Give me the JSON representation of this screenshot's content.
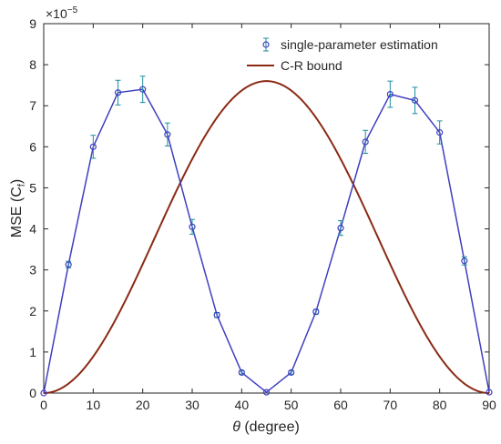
{
  "chart_data": {
    "type": "line",
    "xlabel_symbol": "θ",
    "xlabel_rest": " (degree)",
    "ylabel_main": "MSE (C",
    "ylabel_sub": "f",
    "ylabel_end": ")",
    "exponent_base": "×10",
    "exponent_power": "−5",
    "xlim": [
      0,
      90
    ],
    "ylim": [
      0,
      9
    ],
    "xticks": [
      0,
      10,
      20,
      30,
      40,
      50,
      60,
      70,
      80,
      90
    ],
    "yticks": [
      0,
      1,
      2,
      3,
      4,
      5,
      6,
      7,
      8,
      9
    ],
    "grid": false,
    "legend_position": "top-right",
    "series": [
      {
        "name": "single-parameter estimation",
        "style": "line-with-circles-and-errorbars",
        "color": "#3f3fc0",
        "error_color": "#1f8fa0",
        "x": [
          0,
          5,
          10,
          15,
          20,
          25,
          30,
          35,
          40,
          45,
          50,
          55,
          60,
          65,
          70,
          75,
          80,
          85,
          90
        ],
        "y": [
          0,
          3.13,
          6.0,
          7.32,
          7.4,
          6.3,
          4.05,
          1.9,
          0.5,
          0.02,
          0.5,
          1.98,
          4.02,
          6.12,
          7.28,
          7.13,
          6.35,
          3.22,
          0.02
        ],
        "err": [
          0,
          0.08,
          0.28,
          0.3,
          0.32,
          0.28,
          0.18,
          0.06,
          0.04,
          0.01,
          0.04,
          0.06,
          0.18,
          0.28,
          0.32,
          0.32,
          0.28,
          0.1,
          0.01
        ]
      },
      {
        "name": "C-R bound",
        "style": "line",
        "color": "#8b2a14",
        "function": "peak * sin(2*theta)^2",
        "peak": 7.6
      }
    ]
  }
}
